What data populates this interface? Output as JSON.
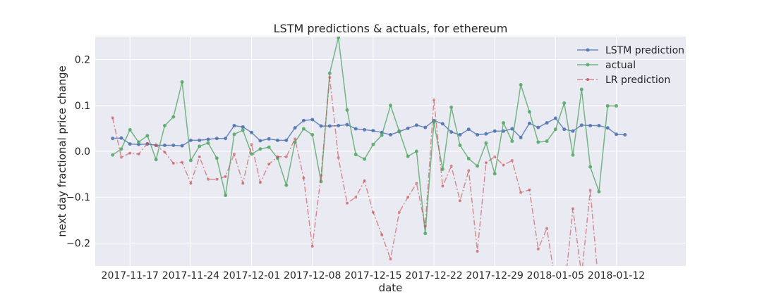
{
  "chart_data": {
    "type": "line",
    "title": "LSTM predictions & actuals, for ethereum",
    "xlabel": "date",
    "ylabel": "next day fractional price change",
    "x_start": "2017-11-15",
    "x_range": [
      "2017-11-13",
      "2018-01-20"
    ],
    "ylim": [
      -0.25,
      0.25
    ],
    "y_ticks": [
      -0.2,
      -0.1,
      0.0,
      0.1,
      0.2
    ],
    "y_tick_labels": [
      "−0.2",
      "−0.1",
      "0.0",
      "0.1",
      "0.2"
    ],
    "x_ticks": [
      "2017-11-17",
      "2017-11-24",
      "2017-12-01",
      "2017-12-08",
      "2017-12-15",
      "2017-12-22",
      "2017-12-29",
      "2018-01-05",
      "2018-01-12"
    ],
    "grid": true,
    "legend_position": "top-right",
    "background": "#eaeaf2",
    "series": [
      {
        "name": "LSTM prediction",
        "color": "#4c72b0",
        "style": "solid",
        "values": [
          0.028,
          0.029,
          0.016,
          0.015,
          0.016,
          0.013,
          0.013,
          0.013,
          0.012,
          0.024,
          0.024,
          0.026,
          0.028,
          0.028,
          0.056,
          0.053,
          0.041,
          0.023,
          0.027,
          0.024,
          0.024,
          0.051,
          0.067,
          0.069,
          0.055,
          0.055,
          0.056,
          0.058,
          0.049,
          0.047,
          0.045,
          0.041,
          0.036,
          0.043,
          0.05,
          0.057,
          0.052,
          0.067,
          0.06,
          0.042,
          0.036,
          0.048,
          0.036,
          0.038,
          0.044,
          0.044,
          0.049,
          0.03,
          0.061,
          0.052,
          0.062,
          0.072,
          0.048,
          0.044,
          0.057,
          0.056,
          0.056,
          0.051,
          0.037,
          0.036
        ]
      },
      {
        "name": "actual",
        "color": "#55a868",
        "style": "solid",
        "values": [
          -0.008,
          0.005,
          0.047,
          0.02,
          0.034,
          -0.018,
          0.056,
          0.075,
          0.151,
          -0.02,
          0.011,
          0.018,
          -0.015,
          -0.096,
          0.037,
          0.046,
          -0.006,
          0.005,
          0.009,
          -0.015,
          -0.074,
          0.02,
          0.049,
          0.036,
          -0.066,
          0.17,
          0.248,
          0.09,
          -0.007,
          -0.017,
          0.015,
          0.035,
          0.1,
          0.044,
          -0.011,
          0.0,
          -0.179,
          0.063,
          -0.039,
          0.096,
          0.013,
          -0.016,
          -0.032,
          0.018,
          -0.049,
          0.062,
          0.022,
          0.145,
          0.086,
          0.02,
          0.022,
          0.048,
          0.105,
          -0.008,
          0.135,
          -0.034,
          -0.088,
          0.099,
          0.099
        ]
      },
      {
        "name": "LR prediction",
        "color": "#c44e52",
        "style": "dashdot",
        "values": [
          0.073,
          -0.013,
          -0.004,
          -0.006,
          0.017,
          0.013,
          -0.002,
          -0.026,
          -0.024,
          -0.07,
          -0.012,
          -0.061,
          -0.061,
          -0.055,
          -0.006,
          -0.07,
          0.015,
          -0.068,
          -0.028,
          -0.012,
          -0.012,
          0.027,
          -0.058,
          -0.207,
          -0.053,
          0.161,
          -0.014,
          -0.113,
          -0.1,
          -0.064,
          -0.133,
          -0.182,
          -0.235,
          -0.133,
          -0.1,
          -0.07,
          -0.163,
          0.112,
          -0.076,
          -0.032,
          -0.108,
          -0.042,
          -0.218,
          -0.025,
          -0.012,
          -0.03,
          -0.02,
          -0.09,
          -0.084,
          -0.213,
          -0.168,
          -0.29,
          -0.31,
          -0.125,
          -0.27,
          -0.085,
          -0.3
        ]
      }
    ]
  }
}
